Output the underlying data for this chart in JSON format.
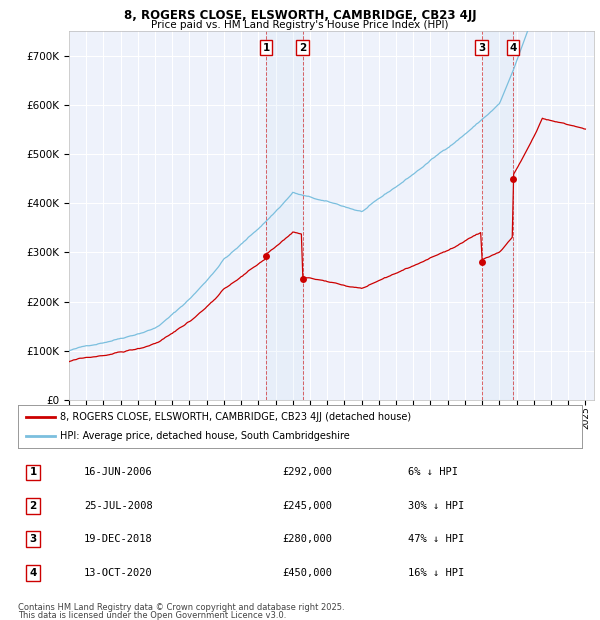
{
  "title1": "8, ROGERS CLOSE, ELSWORTH, CAMBRIDGE, CB23 4JJ",
  "title2": "Price paid vs. HM Land Registry's House Price Index (HPI)",
  "xlim_start": 1995.0,
  "xlim_end": 2025.5,
  "ylim_min": 0,
  "ylim_max": 750000,
  "yticks": [
    0,
    100000,
    200000,
    300000,
    400000,
    500000,
    600000,
    700000
  ],
  "ytick_labels": [
    "£0",
    "£100K",
    "£200K",
    "£300K",
    "£400K",
    "£500K",
    "£600K",
    "£700K"
  ],
  "xticks": [
    1995,
    1996,
    1997,
    1998,
    1999,
    2000,
    2001,
    2002,
    2003,
    2004,
    2005,
    2006,
    2007,
    2008,
    2009,
    2010,
    2011,
    2012,
    2013,
    2014,
    2015,
    2016,
    2017,
    2018,
    2019,
    2020,
    2021,
    2022,
    2023,
    2024,
    2025
  ],
  "hpi_color": "#7bbfde",
  "price_color": "#cc0000",
  "background_color": "#eef2fb",
  "grid_color": "#ffffff",
  "transactions": [
    {
      "num": "1",
      "date": "16-JUN-2006",
      "x": 2006.46,
      "price": 292000
    },
    {
      "num": "2",
      "date": "25-JUL-2008",
      "x": 2008.57,
      "price": 245000
    },
    {
      "num": "3",
      "date": "19-DEC-2018",
      "x": 2018.97,
      "price": 280000
    },
    {
      "num": "4",
      "date": "13-OCT-2020",
      "x": 2020.79,
      "price": 450000
    }
  ],
  "legend_line1": "8, ROGERS CLOSE, ELSWORTH, CAMBRIDGE, CB23 4JJ (detached house)",
  "legend_line2": "HPI: Average price, detached house, South Cambridgeshire",
  "footnote1": "Contains HM Land Registry data © Crown copyright and database right 2025.",
  "footnote2": "This data is licensed under the Open Government Licence v3.0.",
  "table_rows": [
    {
      "num": "1",
      "date": "16-JUN-2006",
      "price": "£292,000",
      "pct": "6% ↓ HPI"
    },
    {
      "num": "2",
      "date": "25-JUL-2008",
      "price": "£245,000",
      "pct": "30% ↓ HPI"
    },
    {
      "num": "3",
      "date": "19-DEC-2018",
      "price": "£280,000",
      "pct": "47% ↓ HPI"
    },
    {
      "num": "4",
      "date": "13-OCT-2020",
      "price": "£450,000",
      "pct": "16% ↓ HPI"
    }
  ]
}
